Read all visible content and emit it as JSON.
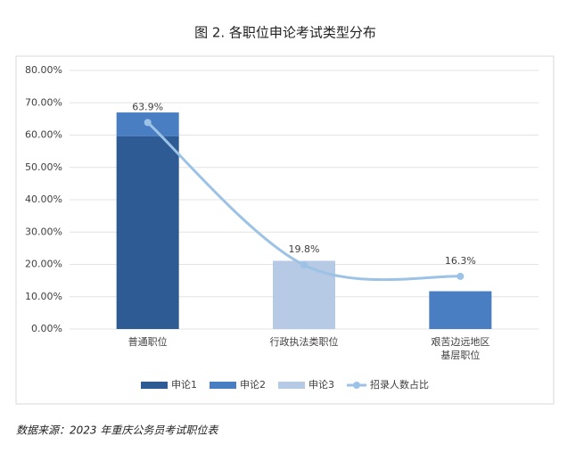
{
  "chart_data": {
    "type": "bar_line",
    "title": "图 2. 各职位申论考试类型分布",
    "source": "数据来源：2023 年重庆公务员考试职位表",
    "categories": [
      "普通职位",
      "行政执法类职位",
      "艰苦边远地区\n基层职位"
    ],
    "series": [
      {
        "name": "申论1",
        "type": "bar",
        "color": "#2e5b94",
        "values": [
          59.6,
          null,
          null
        ]
      },
      {
        "name": "申论2",
        "type": "bar",
        "color": "#4a7ec3",
        "values": [
          7.4,
          null,
          11.7
        ]
      },
      {
        "name": "申论3",
        "type": "bar",
        "color": "#b6c9e5",
        "values": [
          null,
          21.1,
          null
        ]
      },
      {
        "name": "招录人数占比",
        "type": "line",
        "color": "#9cc2e6",
        "values": [
          63.9,
          19.8,
          16.3
        ],
        "value_labels": [
          "63.9%",
          "19.8%",
          "16.3%"
        ]
      }
    ],
    "ylim": [
      0,
      80
    ],
    "yticks": [
      {
        "value": 0,
        "label": "0.00%"
      },
      {
        "value": 10,
        "label": "10.00%"
      },
      {
        "value": 20,
        "label": "20.00%"
      },
      {
        "value": 30,
        "label": "30.00%"
      },
      {
        "value": 40,
        "label": "40.00%"
      },
      {
        "value": 50,
        "label": "50.00%"
      },
      {
        "value": 60,
        "label": "60.00%"
      },
      {
        "value": 70,
        "label": "70.00%"
      },
      {
        "value": 80,
        "label": "80.00%"
      }
    ],
    "grid": true,
    "legend": "bottom"
  }
}
